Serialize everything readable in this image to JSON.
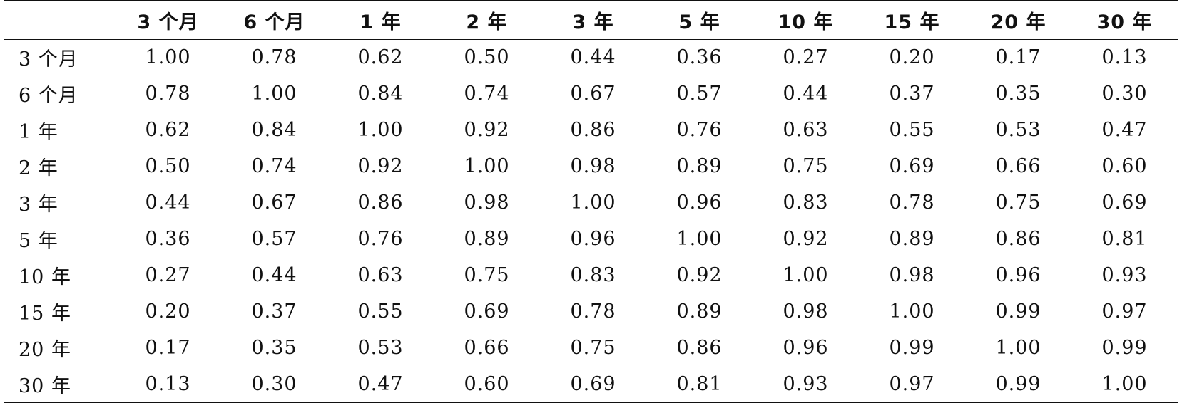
{
  "table": {
    "header": [
      "",
      "3 个月",
      "6 个月",
      "1 年",
      "2 年",
      "3 年",
      "5 年",
      "10 年",
      "15 年",
      "20 年",
      "30 年"
    ],
    "rows": [
      {
        "label": "3 个月",
        "values": [
          "1.00",
          "0.78",
          "0.62",
          "0.50",
          "0.44",
          "0.36",
          "0.27",
          "0.20",
          "0.17",
          "0.13"
        ]
      },
      {
        "label": "6 个月",
        "values": [
          "0.78",
          "1.00",
          "0.84",
          "0.74",
          "0.67",
          "0.57",
          "0.44",
          "0.37",
          "0.35",
          "0.30"
        ]
      },
      {
        "label": "1 年",
        "values": [
          "0.62",
          "0.84",
          "1.00",
          "0.92",
          "0.86",
          "0.76",
          "0.63",
          "0.55",
          "0.53",
          "0.47"
        ]
      },
      {
        "label": "2 年",
        "values": [
          "0.50",
          "0.74",
          "0.92",
          "1.00",
          "0.98",
          "0.89",
          "0.75",
          "0.69",
          "0.66",
          "0.60"
        ]
      },
      {
        "label": "3 年",
        "values": [
          "0.44",
          "0.67",
          "0.86",
          "0.98",
          "1.00",
          "0.96",
          "0.83",
          "0.78",
          "0.75",
          "0.69"
        ]
      },
      {
        "label": "5 年",
        "values": [
          "0.36",
          "0.57",
          "0.76",
          "0.89",
          "0.96",
          "1.00",
          "0.92",
          "0.89",
          "0.86",
          "0.81"
        ]
      },
      {
        "label": "10 年",
        "values": [
          "0.27",
          "0.44",
          "0.63",
          "0.75",
          "0.83",
          "0.92",
          "1.00",
          "0.98",
          "0.96",
          "0.93"
        ]
      },
      {
        "label": "15 年",
        "values": [
          "0.20",
          "0.37",
          "0.55",
          "0.69",
          "0.78",
          "0.89",
          "0.98",
          "1.00",
          "0.99",
          "0.97"
        ]
      },
      {
        "label": "20 年",
        "values": [
          "0.17",
          "0.35",
          "0.53",
          "0.66",
          "0.75",
          "0.86",
          "0.96",
          "0.99",
          "1.00",
          "0.99"
        ]
      },
      {
        "label": "30 年",
        "values": [
          "0.13",
          "0.30",
          "0.47",
          "0.60",
          "0.69",
          "0.81",
          "0.93",
          "0.97",
          "0.99",
          "1.00"
        ]
      }
    ]
  }
}
